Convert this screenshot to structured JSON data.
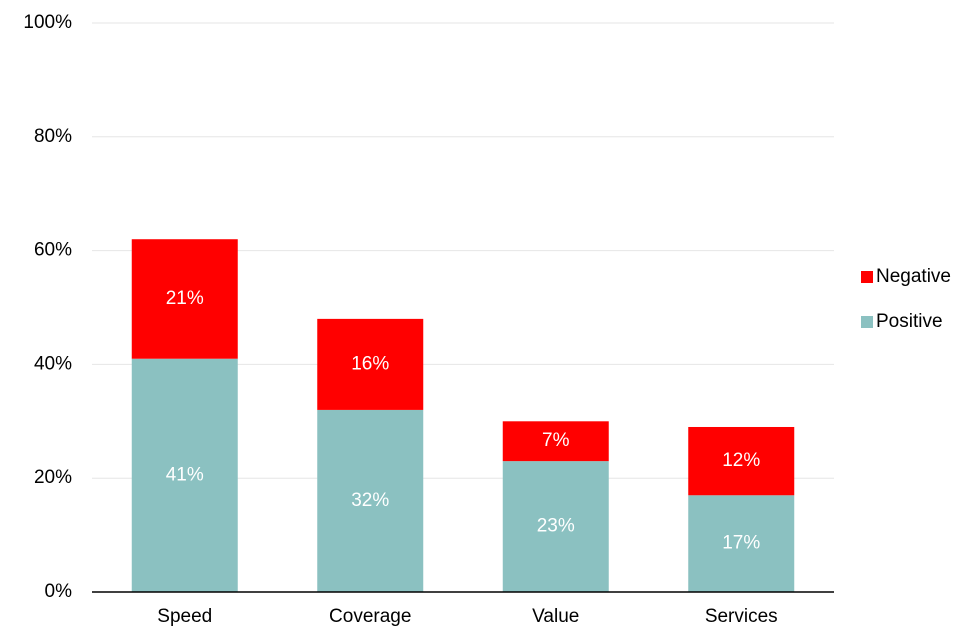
{
  "chart_data": {
    "type": "stacked_bar",
    "categories": [
      "Speed",
      "Coverage",
      "Value",
      "Services"
    ],
    "series": [
      {
        "name": "Positive",
        "color": "#8bc1c1",
        "values": [
          41,
          32,
          23,
          17
        ],
        "value_labels": [
          "41%",
          "32%",
          "23%",
          "17%"
        ]
      },
      {
        "name": "Negative",
        "color": "#ff0000",
        "values": [
          21,
          16,
          7,
          12
        ],
        "value_labels": [
          "21%",
          "16%",
          "7%",
          "12%"
        ]
      }
    ],
    "ylim": [
      0,
      100
    ],
    "yticks": [
      {
        "value": 0,
        "label": "0%"
      },
      {
        "value": 20,
        "label": "20%"
      },
      {
        "value": 40,
        "label": "40%"
      },
      {
        "value": 60,
        "label": "60%"
      },
      {
        "value": 80,
        "label": "80%"
      },
      {
        "value": 100,
        "label": "100%"
      }
    ],
    "grid": true,
    "legend": "right"
  }
}
